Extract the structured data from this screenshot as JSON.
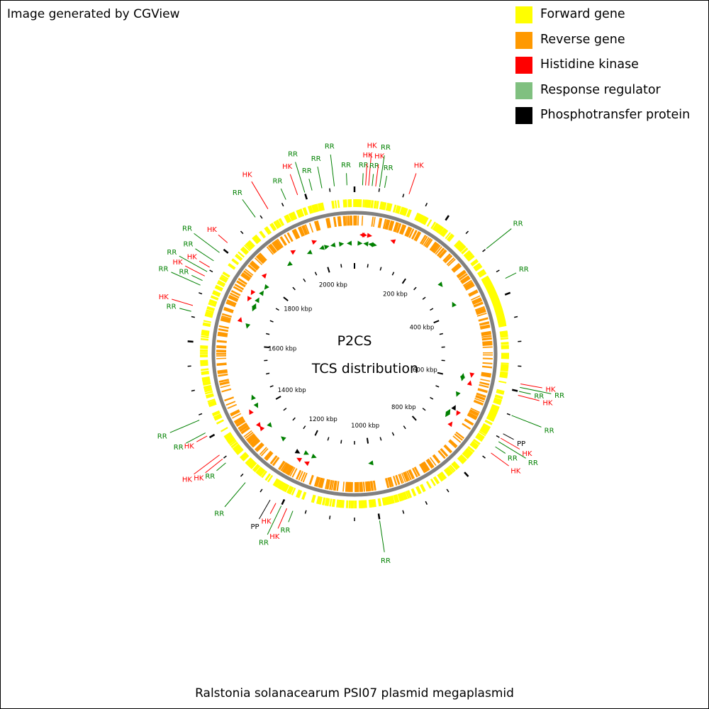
{
  "credit": "Image generated by CGView",
  "title": "Ralstonia solanacearum PSI07 plasmid megaplasmid",
  "center_title": "P2CS",
  "center_subtitle": "TCS distribution",
  "genome_length_kbp": 2100,
  "legend": [
    {
      "label": "Forward gene",
      "color": "#ffff00"
    },
    {
      "label": "Reverse gene",
      "color": "#ff9900"
    },
    {
      "label": "Histidine kinase",
      "color": "#ff0000"
    },
    {
      "label": "Response regulator",
      "color": "#80c080"
    },
    {
      "label": "Phosphotransfer protein",
      "color": "#000000"
    }
  ],
  "colors": {
    "forward": "#ffff00",
    "reverse": "#ff9900",
    "backbone": "#808080",
    "hk_label": "#ff0000",
    "rr_label": "#008000",
    "pp_label": "#000000",
    "hk_marker": "#ff0000",
    "rr_marker": "#008000",
    "pp_marker": "#000000"
  },
  "ruler": {
    "label_unit": "kbp",
    "labels": [
      200,
      400,
      600,
      800,
      1000,
      1200,
      1400,
      1600,
      1800,
      2000
    ],
    "minor_step_kbp": 50
  },
  "features": [
    {
      "type": "RR",
      "kbp": 16
    },
    {
      "type": "HK",
      "kbp": 22
    },
    {
      "type": "HK",
      "kbp": 28
    },
    {
      "type": "RR",
      "kbp": 35
    },
    {
      "type": "HK",
      "kbp": 42
    },
    {
      "type": "RR",
      "kbp": 50
    },
    {
      "type": "RR",
      "kbp": 60
    },
    {
      "type": "HK",
      "kbp": 110
    },
    {
      "type": "RR",
      "kbp": 300
    },
    {
      "type": "RR",
      "kbp": 370
    },
    {
      "type": "HK",
      "kbp": 585
    },
    {
      "type": "RR",
      "kbp": 592
    },
    {
      "type": "RR",
      "kbp": 600
    },
    {
      "type": "HK",
      "kbp": 608
    },
    {
      "type": "RR",
      "kbp": 650
    },
    {
      "type": "PP",
      "kbp": 690
    },
    {
      "type": "HK",
      "kbp": 700
    },
    {
      "type": "RR",
      "kbp": 708
    },
    {
      "type": "RR",
      "kbp": 720
    },
    {
      "type": "HK",
      "kbp": 735
    },
    {
      "type": "RR",
      "kbp": 1000
    },
    {
      "type": "RR",
      "kbp": 1175
    },
    {
      "type": "HK",
      "kbp": 1188
    },
    {
      "type": "RR",
      "kbp": 1200
    },
    {
      "type": "HK",
      "kbp": 1212
    },
    {
      "type": "PP",
      "kbp": 1225
    },
    {
      "type": "RR",
      "kbp": 1285
    },
    {
      "type": "RR",
      "kbp": 1340
    },
    {
      "type": "HK",
      "kbp": 1350
    },
    {
      "type": "HK",
      "kbp": 1360
    },
    {
      "type": "HK",
      "kbp": 1405
    },
    {
      "type": "RR",
      "kbp": 1412
    },
    {
      "type": "RR",
      "kbp": 1440
    },
    {
      "type": "RR",
      "kbp": 1660
    },
    {
      "type": "HK",
      "kbp": 1672
    },
    {
      "type": "RR",
      "kbp": 1715
    },
    {
      "type": "RR",
      "kbp": 1725
    },
    {
      "type": "HK",
      "kbp": 1735
    },
    {
      "type": "RR",
      "kbp": 1745
    },
    {
      "type": "HK",
      "kbp": 1755
    },
    {
      "type": "RR",
      "kbp": 1770
    },
    {
      "type": "RR",
      "kbp": 1790
    },
    {
      "type": "HK",
      "kbp": 1815
    },
    {
      "type": "RR",
      "kbp": 1890
    },
    {
      "type": "HK",
      "kbp": 1920
    },
    {
      "type": "RR",
      "kbp": 1960
    },
    {
      "type": "HK",
      "kbp": 1985
    },
    {
      "type": "RR",
      "kbp": 2000
    },
    {
      "type": "RR",
      "kbp": 2015
    },
    {
      "type": "RR",
      "kbp": 2035
    },
    {
      "type": "RR",
      "kbp": 2060
    },
    {
      "type": "RR",
      "kbp": 2085
    }
  ]
}
